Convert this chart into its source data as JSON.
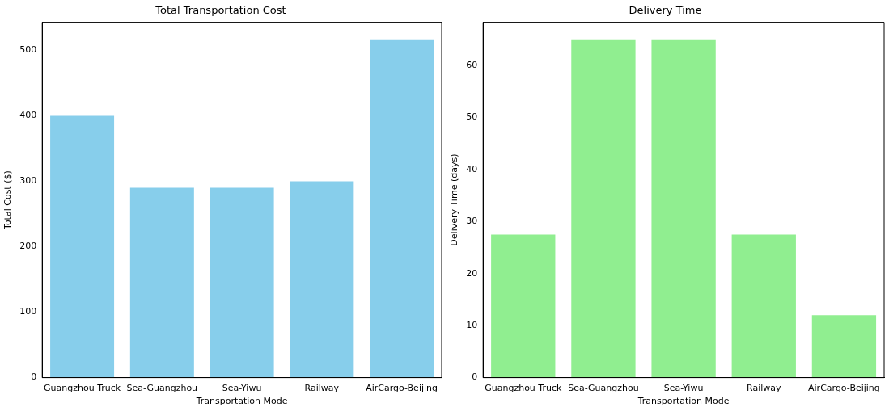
{
  "chart_data": [
    {
      "type": "bar",
      "title": "Total Transportation Cost",
      "xlabel": "Transportation Mode",
      "ylabel": "Total Cost ($)",
      "categories": [
        "Guangzhou Truck",
        "Sea-Guangzhou",
        "Sea-Yiwu",
        "Railway",
        "AirCargo-Beijing"
      ],
      "values": [
        400,
        290,
        290,
        300,
        517
      ],
      "color": "#87ceeb",
      "ylim": [
        0,
        543
      ],
      "yticks": [
        0,
        100,
        200,
        300,
        400,
        500
      ],
      "grid": false,
      "legend": false
    },
    {
      "type": "bar",
      "title": "Delivery Time",
      "xlabel": "Transportation Mode",
      "ylabel": "Delivery Time (days)",
      "categories": [
        "Guangzhou Truck",
        "Sea-Guangzhou",
        "Sea-Yiwu",
        "Railway",
        "AirCargo-Beijing"
      ],
      "values": [
        27.5,
        65,
        65,
        27.5,
        12
      ],
      "color": "#90ee90",
      "ylim": [
        0,
        68.3
      ],
      "yticks": [
        0,
        10,
        20,
        30,
        40,
        50,
        60
      ],
      "grid": false,
      "legend": false
    }
  ]
}
